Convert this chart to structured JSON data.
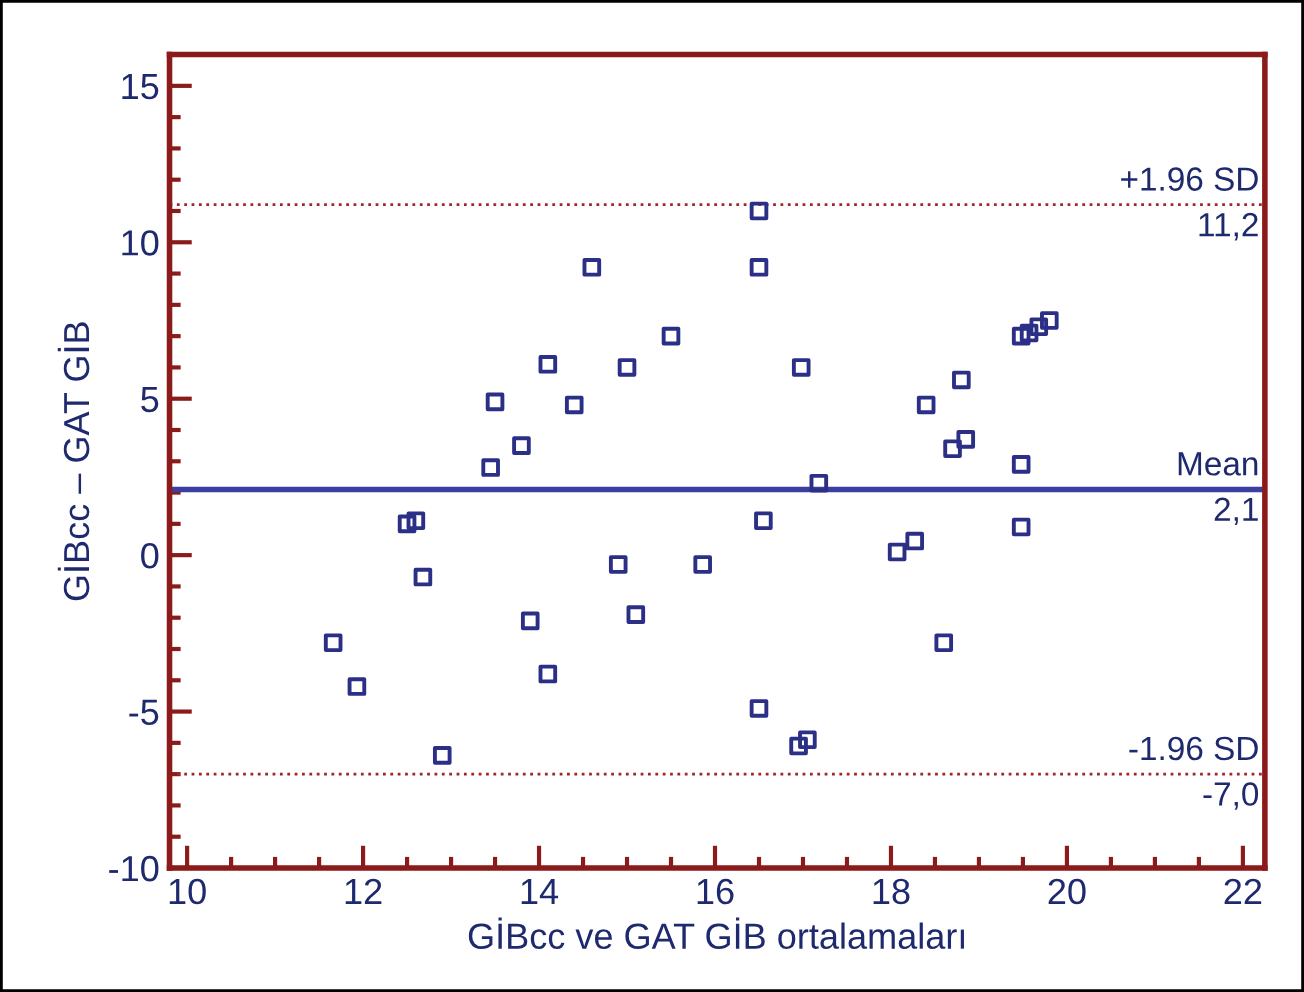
{
  "chart_data": {
    "type": "scatter",
    "xlabel": "GİBcc ve GAT GİB ortalamaları",
    "ylabel": "GİBcc – GAT GİB",
    "xlim": [
      9.8,
      22.25
    ],
    "ylim": [
      -10,
      16
    ],
    "xticks": [
      10,
      12,
      14,
      16,
      18,
      20,
      22
    ],
    "yticks": [
      -10,
      -5,
      0,
      5,
      10,
      15
    ],
    "marker": "square",
    "grid": false,
    "legend": false,
    "series": [
      {
        "color": "#2b2f86",
        "x": [
          11.66,
          11.93,
          12.5,
          12.6,
          12.68,
          12.9,
          13.45,
          13.5,
          13.8,
          13.9,
          14.1,
          14.1,
          14.4,
          14.6,
          14.9,
          15.0,
          15.1,
          15.5,
          15.86,
          16.5,
          16.5,
          16.55,
          16.5,
          16.98,
          16.95,
          17.05,
          17.18,
          18.07,
          18.27,
          18.4,
          18.6,
          18.7,
          18.85,
          18.8,
          19.48,
          19.48,
          19.48,
          19.57,
          19.68,
          19.8
        ],
        "values": [
          -2.8,
          -4.2,
          1.0,
          1.1,
          -0.7,
          -6.4,
          2.8,
          4.9,
          3.5,
          -2.1,
          6.1,
          -3.8,
          4.8,
          9.2,
          -0.3,
          6.0,
          -1.9,
          7.0,
          -0.3,
          11.0,
          9.2,
          1.1,
          -4.9,
          6.0,
          -6.1,
          -5.9,
          2.3,
          0.1,
          0.45,
          4.8,
          -2.8,
          3.4,
          3.7,
          5.6,
          2.9,
          0.9,
          7.0,
          7.1,
          7.3,
          7.5
        ]
      }
    ],
    "ref_lines": [
      {
        "axis": "y",
        "value": 11.2,
        "label": "+1.96 SD\n11,2",
        "color": "#a0262a",
        "line_style": "dotted"
      },
      {
        "axis": "y",
        "value": 2.1,
        "label": "Mean\n2,1",
        "color": "#3a3fa0",
        "line_style": "solid"
      },
      {
        "axis": "y",
        "value": -7.0,
        "label": "-1.96 SD\n-7,0",
        "color": "#a0262a",
        "line_style": "dotted"
      }
    ]
  }
}
